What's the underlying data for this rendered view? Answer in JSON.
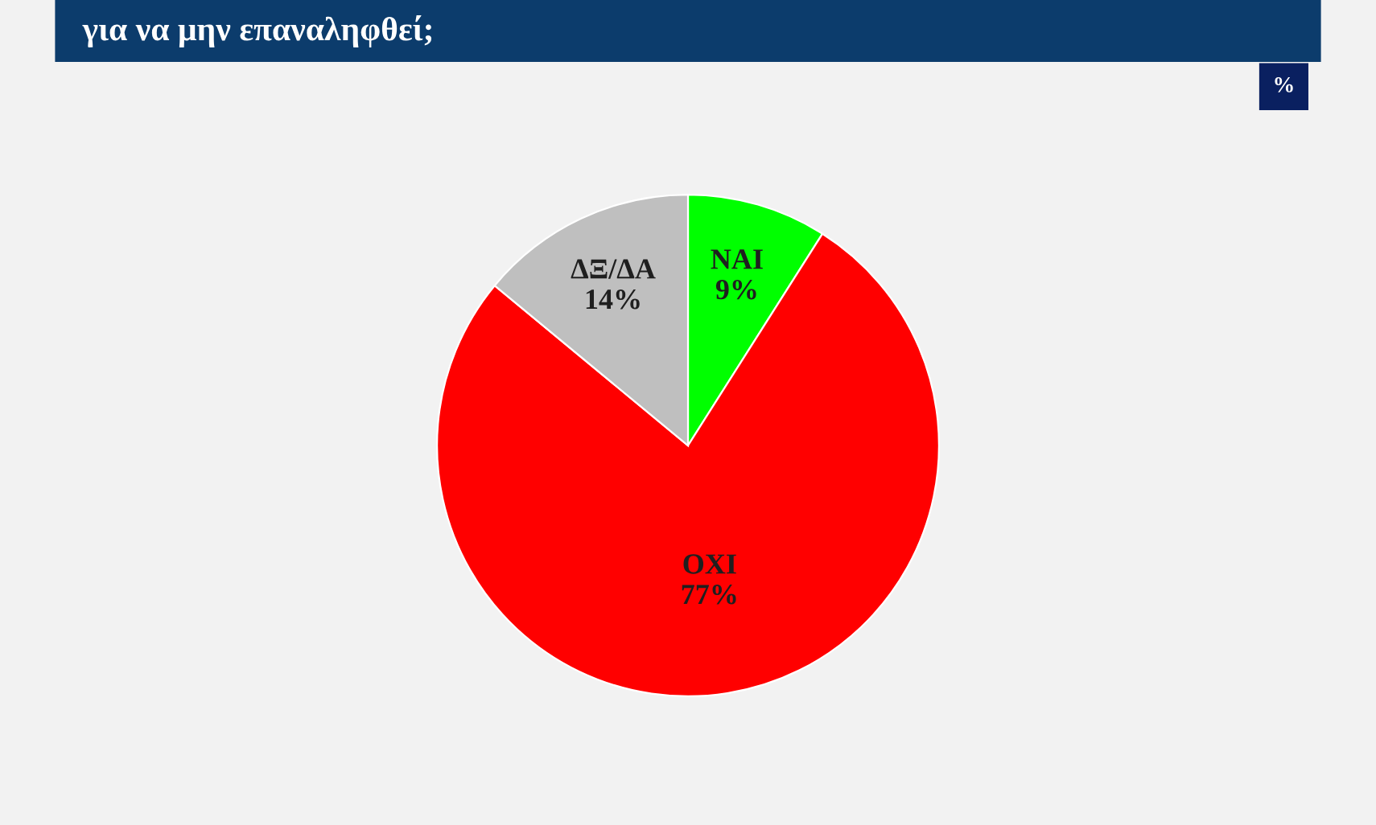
{
  "chart_data": {
    "type": "pie",
    "title": "για να μην επαναληφθεί;",
    "categories": [
      "ΝΑΙ",
      "ΟΧΙ",
      "ΔΞ/ΔΑ"
    ],
    "values": [
      9,
      77,
      14
    ],
    "value_labels": [
      "9%",
      "77%",
      "14%"
    ],
    "colors": [
      "#00ff00",
      "#ff0000",
      "#bfbfbf"
    ],
    "annotations": [
      "%"
    ],
    "legend": false
  }
}
